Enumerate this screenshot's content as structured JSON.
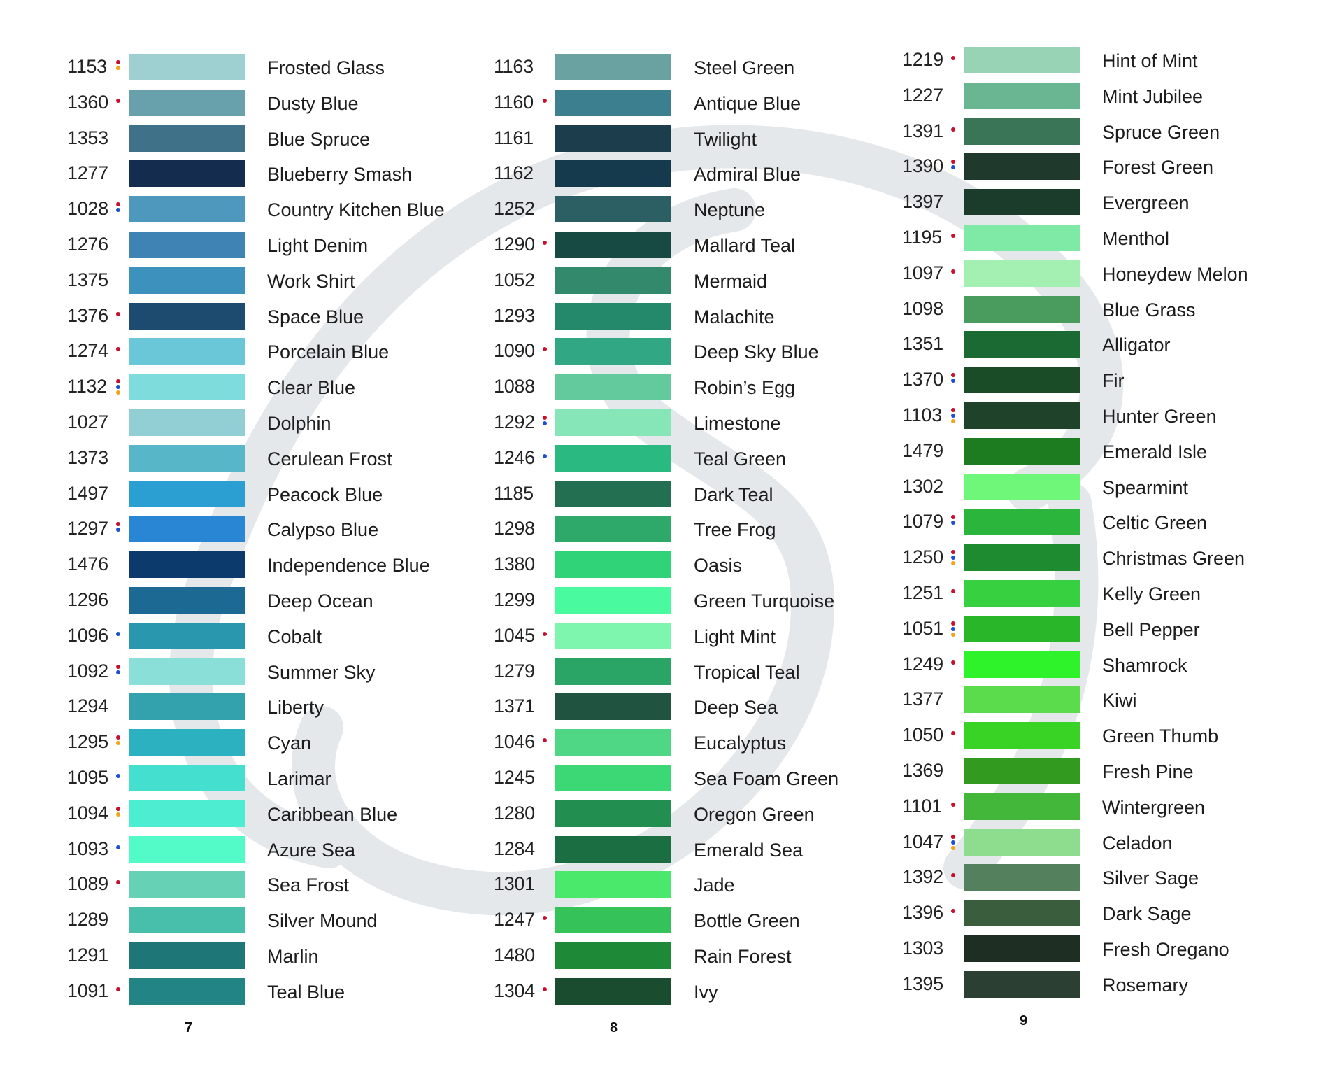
{
  "marker_colors": {
    "red": "#c8102e",
    "blue": "#1f4fd6",
    "orange": "#f2a51a"
  },
  "columns": [
    {
      "page_number": "7",
      "entries": [
        {
          "code": "1153",
          "name": "Frosted Glass",
          "color": "#9fd0d1",
          "markers": [
            "red",
            "orange"
          ]
        },
        {
          "code": "1360",
          "name": "Dusty Blue",
          "color": "#68a1ab",
          "markers": [
            "red"
          ]
        },
        {
          "code": "1353",
          "name": "Blue Spruce",
          "color": "#3f7189",
          "markers": []
        },
        {
          "code": "1277",
          "name": "Blueberry Smash",
          "color": "#142d4f",
          "markers": []
        },
        {
          "code": "1028",
          "name": "Country Kitchen Blue",
          "color": "#4e97bd",
          "markers": [
            "red",
            "blue"
          ]
        },
        {
          "code": "1276",
          "name": "Light Denim",
          "color": "#3e83b3",
          "markers": []
        },
        {
          "code": "1375",
          "name": "Work Shirt",
          "color": "#3c92bc",
          "markers": []
        },
        {
          "code": "1376",
          "name": "Space Blue",
          "color": "#1d4b6f",
          "markers": [
            "red"
          ]
        },
        {
          "code": "1274",
          "name": "Porcelain Blue",
          "color": "#6ac7d8",
          "markers": [
            "red"
          ]
        },
        {
          "code": "1132",
          "name": "Clear Blue",
          "color": "#7fdcdd",
          "markers": [
            "red",
            "blue",
            "orange"
          ]
        },
        {
          "code": "1027",
          "name": "Dolphin",
          "color": "#92cfd5",
          "markers": []
        },
        {
          "code": "1373",
          "name": "Cerulean Frost",
          "color": "#57b6c8",
          "markers": []
        },
        {
          "code": "1497",
          "name": "Peacock Blue",
          "color": "#2b9fd2",
          "markers": []
        },
        {
          "code": "1297",
          "name": "Calypso Blue",
          "color": "#2986d4",
          "markers": [
            "red",
            "blue"
          ]
        },
        {
          "code": "1476",
          "name": "Independence Blue",
          "color": "#0d3a6d",
          "markers": []
        },
        {
          "code": "1296",
          "name": "Deep Ocean",
          "color": "#1c6a94",
          "markers": []
        },
        {
          "code": "1096",
          "name": "Cobalt",
          "color": "#2998ae",
          "markers": [
            "blue"
          ]
        },
        {
          "code": "1092",
          "name": "Summer Sky",
          "color": "#8ae0d8",
          "markers": [
            "red",
            "blue"
          ]
        },
        {
          "code": "1294",
          "name": "Liberty",
          "color": "#34a2ad",
          "markers": []
        },
        {
          "code": "1295",
          "name": "Cyan",
          "color": "#2cb1c1",
          "markers": [
            "red",
            "orange"
          ]
        },
        {
          "code": "1095",
          "name": "Larimar",
          "color": "#45dfcf",
          "markers": [
            "blue"
          ]
        },
        {
          "code": "1094",
          "name": "Caribbean Blue",
          "color": "#4cedd1",
          "markers": [
            "red",
            "orange"
          ]
        },
        {
          "code": "1093",
          "name": "Azure Sea",
          "color": "#52fbc8",
          "markers": [
            "blue"
          ]
        },
        {
          "code": "1089",
          "name": "Sea Frost",
          "color": "#66d1b5",
          "markers": [
            "red"
          ]
        },
        {
          "code": "1289",
          "name": "Silver Mound",
          "color": "#48bfaa",
          "markers": []
        },
        {
          "code": "1291",
          "name": "Marlin",
          "color": "#1f7676",
          "markers": []
        },
        {
          "code": "1091",
          "name": "Teal Blue",
          "color": "#228484",
          "markers": [
            "red"
          ]
        }
      ]
    },
    {
      "page_number": "8",
      "entries": [
        {
          "code": "1163",
          "name": "Steel Green",
          "color": "#6aa2a2",
          "markers": []
        },
        {
          "code": "1160",
          "name": "Antique Blue",
          "color": "#3c7f8e",
          "markers": [
            "red"
          ]
        },
        {
          "code": "1161",
          "name": "Twilight",
          "color": "#1c3d4c",
          "markers": []
        },
        {
          "code": "1162",
          "name": "Admiral Blue",
          "color": "#163a4d",
          "markers": []
        },
        {
          "code": "1252",
          "name": "Neptune",
          "color": "#2c5f63",
          "markers": []
        },
        {
          "code": "1290",
          "name": "Mallard Teal",
          "color": "#174a43",
          "markers": [
            "red"
          ]
        },
        {
          "code": "1052",
          "name": "Mermaid",
          "color": "#33896c",
          "markers": []
        },
        {
          "code": "1293",
          "name": "Malachite",
          "color": "#24896a",
          "markers": []
        },
        {
          "code": "1090",
          "name": "Deep Sky Blue",
          "color": "#31a784",
          "markers": [
            "red"
          ]
        },
        {
          "code": "1088",
          "name": "Robin’s Egg",
          "color": "#63ca9e",
          "markers": []
        },
        {
          "code": "1292",
          "name": "Limestone",
          "color": "#86e6b8",
          "markers": [
            "red",
            "blue"
          ]
        },
        {
          "code": "1246",
          "name": "Teal Green",
          "color": "#2ab981",
          "markers": [
            "blue"
          ]
        },
        {
          "code": "1185",
          "name": "Dark Teal",
          "color": "#236f52",
          "markers": []
        },
        {
          "code": "1298",
          "name": "Tree Frog",
          "color": "#2ea96a",
          "markers": []
        },
        {
          "code": "1380",
          "name": "Oasis",
          "color": "#31d379",
          "markers": []
        },
        {
          "code": "1299",
          "name": "Green Turquoise",
          "color": "#4afa9f",
          "markers": []
        },
        {
          "code": "1045",
          "name": "Light Mint",
          "color": "#7ef6ae",
          "markers": [
            "red"
          ]
        },
        {
          "code": "1279",
          "name": "Tropical Teal",
          "color": "#2aa565",
          "markers": []
        },
        {
          "code": "1371",
          "name": "Deep Sea",
          "color": "#205441",
          "markers": []
        },
        {
          "code": "1046",
          "name": "Eucalyptus",
          "color": "#4fd786",
          "markers": [
            "red"
          ]
        },
        {
          "code": "1245",
          "name": "Sea Foam Green",
          "color": "#3cd875",
          "markers": []
        },
        {
          "code": "1280",
          "name": "Oregon Green",
          "color": "#228f51",
          "markers": []
        },
        {
          "code": "1284",
          "name": "Emerald Sea",
          "color": "#1a6e42",
          "markers": []
        },
        {
          "code": "1301",
          "name": "Jade",
          "color": "#4ae96b",
          "markers": []
        },
        {
          "code": "1247",
          "name": "Bottle Green",
          "color": "#34c259",
          "markers": [
            "red"
          ]
        },
        {
          "code": "1480",
          "name": "Rain Forest",
          "color": "#1e8a38",
          "markers": []
        },
        {
          "code": "1304",
          "name": "Ivy",
          "color": "#1a4d30",
          "markers": [
            "red"
          ]
        }
      ]
    },
    {
      "page_number": "9",
      "entries": [
        {
          "code": "1219",
          "name": "Hint of Mint",
          "color": "#99d3b6",
          "markers": [
            "red"
          ]
        },
        {
          "code": "1227",
          "name": "Mint Jubilee",
          "color": "#6ab692",
          "markers": []
        },
        {
          "code": "1391",
          "name": "Spruce Green",
          "color": "#3b7558",
          "markers": [
            "red"
          ]
        },
        {
          "code": "1390",
          "name": "Forest Green",
          "color": "#1f3a2c",
          "markers": [
            "red",
            "blue"
          ]
        },
        {
          "code": "1397",
          "name": "Evergreen",
          "color": "#1b3b2b",
          "markers": []
        },
        {
          "code": "1195",
          "name": "Menthol",
          "color": "#7eeaa6",
          "markers": [
            "red"
          ]
        },
        {
          "code": "1097",
          "name": "Honeydew Melon",
          "color": "#a4f0b2",
          "markers": [
            "red"
          ]
        },
        {
          "code": "1098",
          "name": "Blue Grass",
          "color": "#4a9c5e",
          "markers": []
        },
        {
          "code": "1351",
          "name": "Alligator",
          "color": "#1b6a34",
          "markers": []
        },
        {
          "code": "1370",
          "name": "Fir",
          "color": "#1a4d27",
          "markers": [
            "red",
            "blue"
          ]
        },
        {
          "code": "1103",
          "name": "Hunter Green",
          "color": "#1f432a",
          "markers": [
            "red",
            "blue",
            "orange"
          ]
        },
        {
          "code": "1479",
          "name": "Emerald Isle",
          "color": "#1d7c1f",
          "markers": []
        },
        {
          "code": "1302",
          "name": "Spearmint",
          "color": "#6ff77a",
          "markers": []
        },
        {
          "code": "1079",
          "name": "Celtic Green",
          "color": "#2cb53c",
          "markers": [
            "red",
            "blue"
          ]
        },
        {
          "code": "1250",
          "name": "Christmas Green",
          "color": "#1f8b30",
          "markers": [
            "red",
            "blue",
            "orange"
          ]
        },
        {
          "code": "1251",
          "name": "Kelly Green",
          "color": "#36d041",
          "markers": [
            "red"
          ]
        },
        {
          "code": "1051",
          "name": "Bell Pepper",
          "color": "#29b628",
          "markers": [
            "red",
            "blue",
            "orange"
          ]
        },
        {
          "code": "1249",
          "name": "Shamrock",
          "color": "#2ef22a",
          "markers": [
            "red"
          ]
        },
        {
          "code": "1377",
          "name": "Kiwi",
          "color": "#5bdc4c",
          "markers": []
        },
        {
          "code": "1050",
          "name": "Green Thumb",
          "color": "#39d325",
          "markers": [
            "red"
          ]
        },
        {
          "code": "1369",
          "name": "Fresh Pine",
          "color": "#339a20",
          "markers": []
        },
        {
          "code": "1101",
          "name": "Wintergreen",
          "color": "#43b73a",
          "markers": [
            "red"
          ]
        },
        {
          "code": "1047",
          "name": "Celadon",
          "color": "#8edc8e",
          "markers": [
            "red",
            "blue",
            "orange"
          ]
        },
        {
          "code": "1392",
          "name": "Silver Sage",
          "color": "#55805d",
          "markers": [
            "red"
          ]
        },
        {
          "code": "1396",
          "name": "Dark Sage",
          "color": "#3a5e3d",
          "markers": [
            "red"
          ]
        },
        {
          "code": "1303",
          "name": "Fresh Oregano",
          "color": "#1f2e23",
          "markers": []
        },
        {
          "code": "1395",
          "name": "Rosemary",
          "color": "#2b3f33",
          "markers": []
        }
      ]
    }
  ]
}
